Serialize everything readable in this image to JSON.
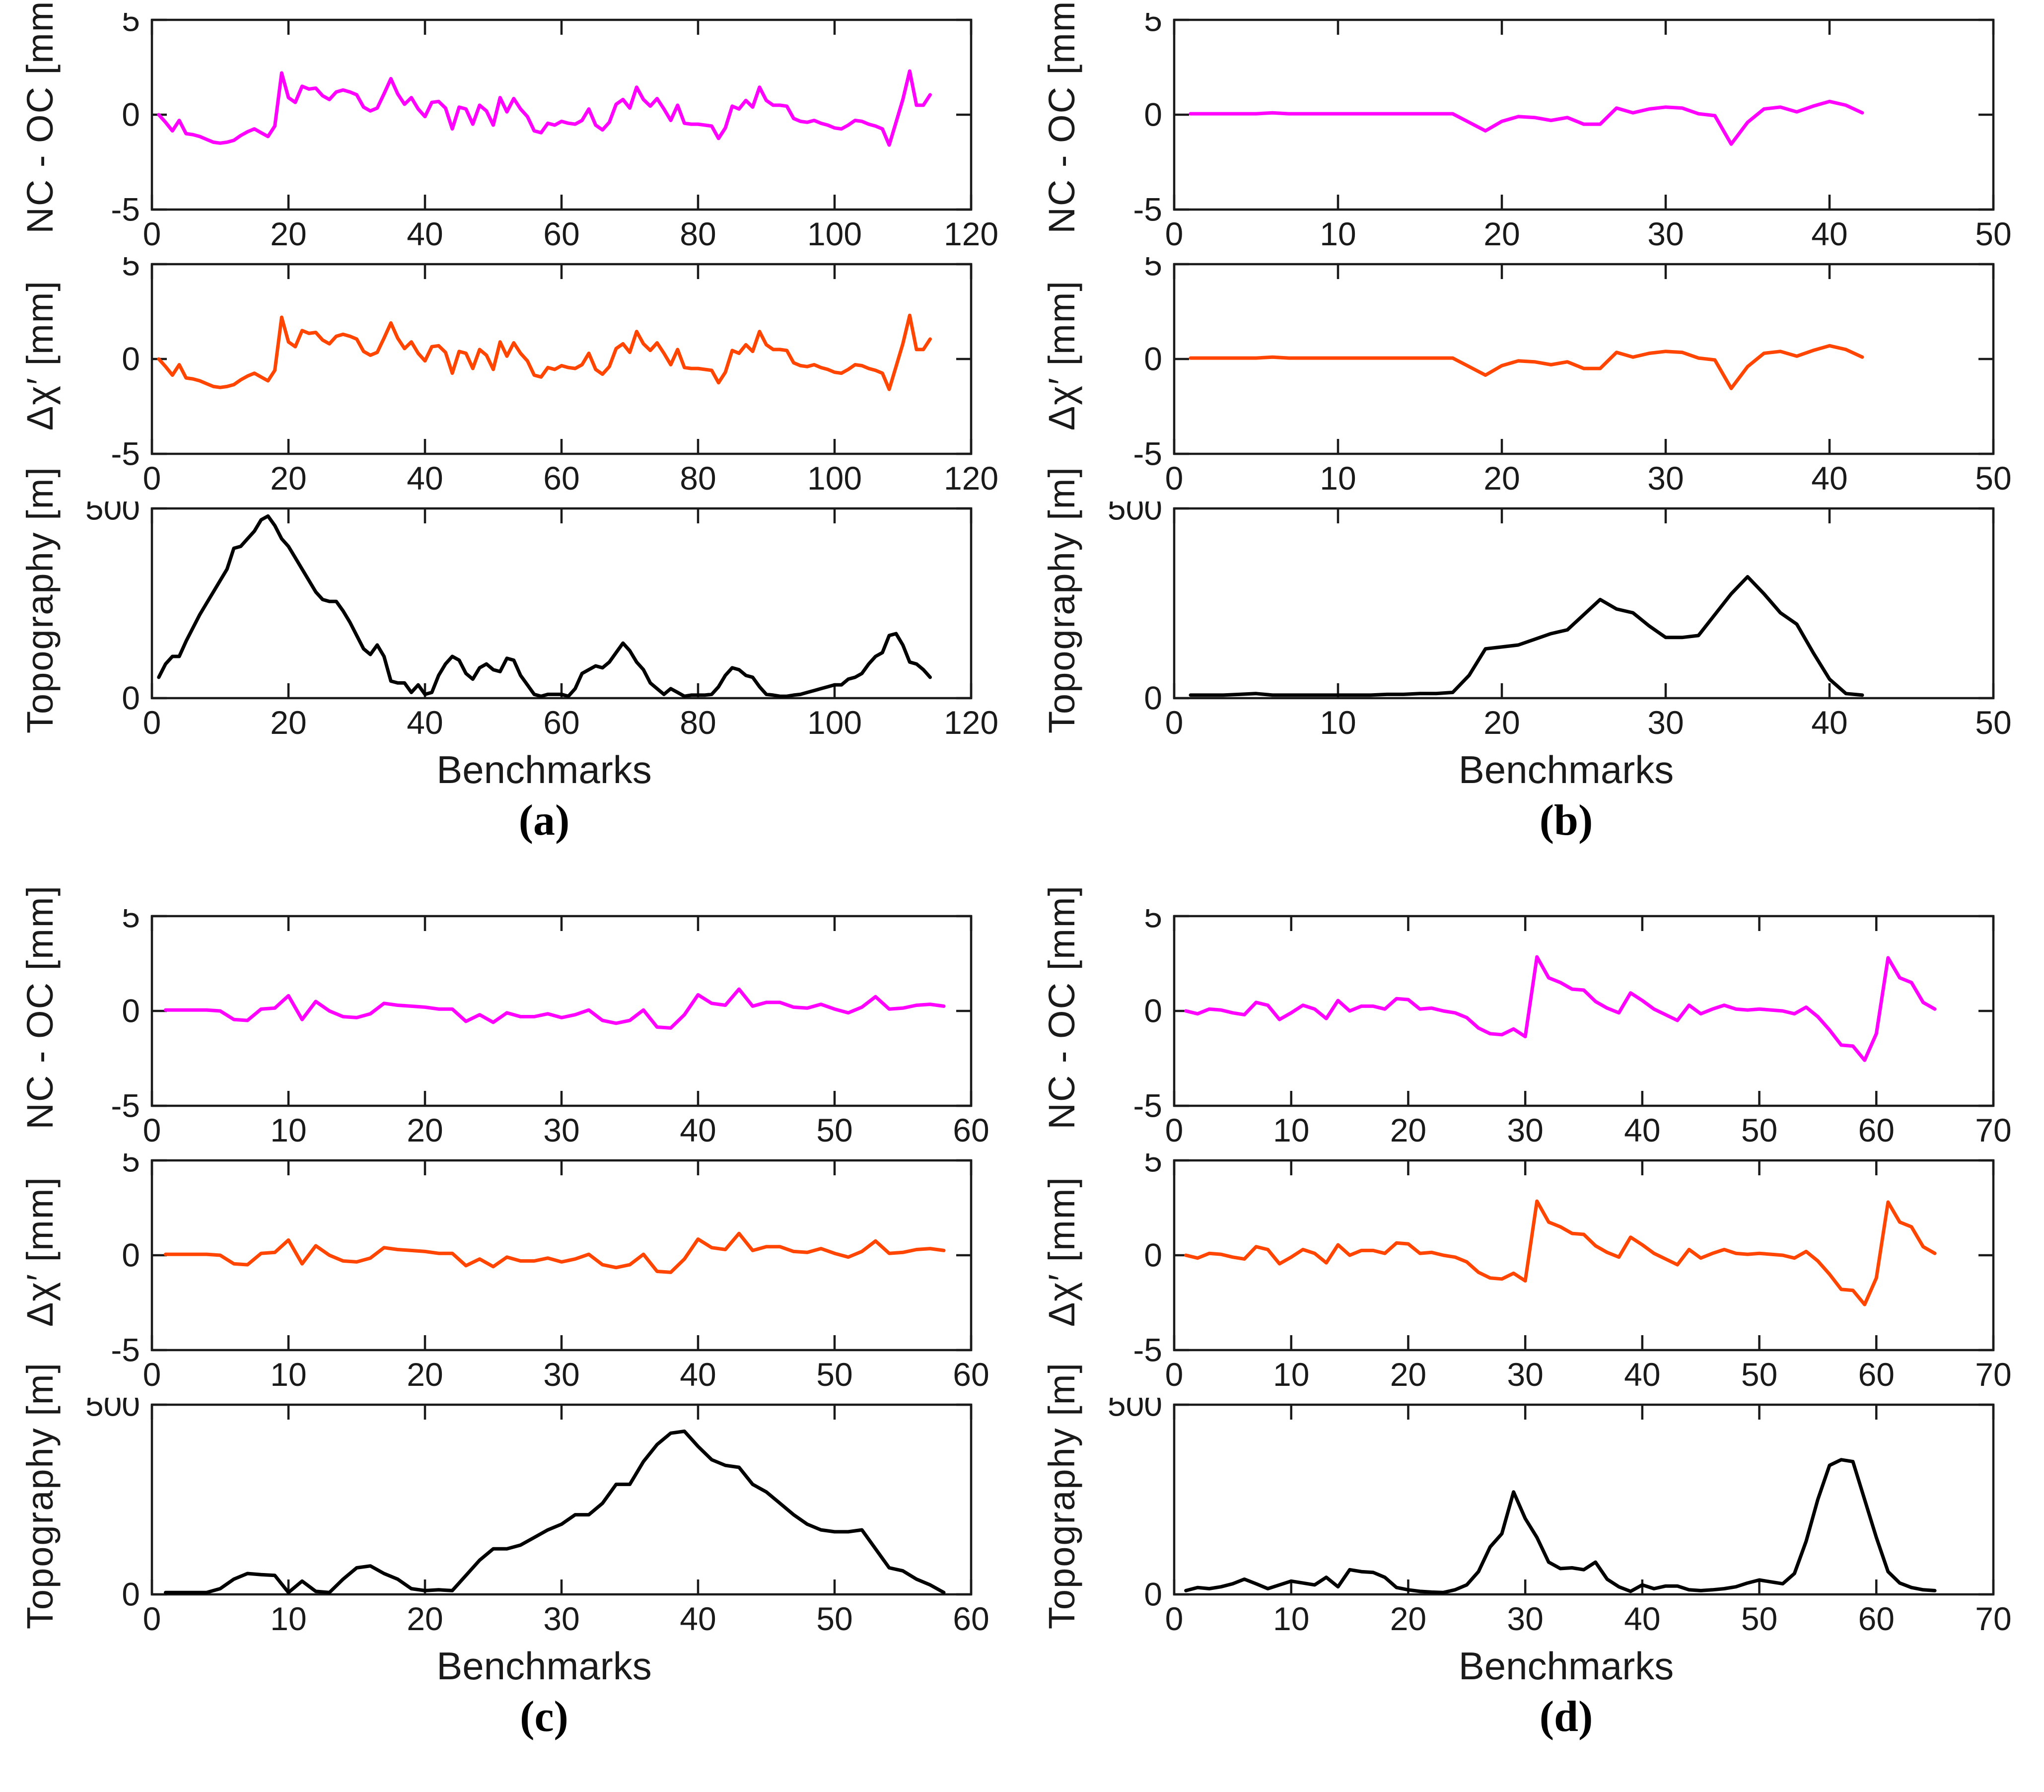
{
  "chart_data": [
    {
      "type": "line",
      "label": "(a)",
      "xlabel": "Benchmarks",
      "xlim": [
        0,
        120
      ],
      "xticks": [
        0,
        20,
        40,
        60,
        80,
        100,
        120
      ],
      "n_points": 114,
      "legend": "none",
      "grid": false,
      "series": {
        "residual": [
          0,
          -0.4,
          -0.85,
          -0.3,
          -1,
          -1.05,
          -1.15,
          -1.3,
          -1.45,
          -1.5,
          -1.45,
          -1.35,
          -1.1,
          -0.9,
          -0.75,
          -0.95,
          -1.15,
          -0.6,
          2.2,
          0.9,
          0.65,
          1.5,
          1.35,
          1.4,
          1,
          0.8,
          1.2,
          1.3,
          1.2,
          1.05,
          0.4,
          0.2,
          0.35,
          1.1,
          1.9,
          1.1,
          0.55,
          0.9,
          0.3,
          -0.1,
          0.65,
          0.7,
          0.35,
          -0.75,
          0.4,
          0.3,
          -0.5,
          0.5,
          0.2,
          -0.55,
          0.9,
          0.15,
          0.85,
          0.3,
          -0.1,
          -0.85,
          -0.95,
          -0.45,
          -0.55,
          -0.35,
          -0.45,
          -0.5,
          -0.3,
          0.3,
          -0.55,
          -0.8,
          -0.4,
          0.55,
          0.8,
          0.35,
          1.45,
          0.8,
          0.45,
          0.85,
          0.3,
          -0.3,
          0.5,
          -0.45,
          -0.5,
          -0.5,
          -0.55,
          -0.6,
          -1.25,
          -0.7,
          0.45,
          0.3,
          0.75,
          0.4,
          1.45,
          0.75,
          0.5,
          0.5,
          0.45,
          -0.2,
          -0.35,
          -0.4,
          -0.3,
          -0.45,
          -0.55,
          -0.7,
          -0.75,
          -0.55,
          -0.3,
          -0.35,
          -0.5,
          -0.6,
          -0.75,
          -1.6,
          -0.4,
          0.8,
          2.3,
          0.5,
          0.5,
          1.05
        ],
        "topography": [
          55,
          90,
          110,
          110,
          150,
          185,
          220,
          250,
          280,
          310,
          340,
          395,
          400,
          420,
          440,
          470,
          480,
          455,
          420,
          400,
          370,
          340,
          310,
          280,
          260,
          255,
          255,
          230,
          200,
          165,
          130,
          115,
          140,
          110,
          45,
          40,
          40,
          15,
          35,
          10,
          15,
          60,
          90,
          110,
          100,
          65,
          50,
          80,
          90,
          75,
          70,
          105,
          100,
          60,
          35,
          10,
          5,
          10,
          10,
          10,
          5,
          25,
          65,
          75,
          85,
          80,
          95,
          120,
          145,
          125,
          95,
          75,
          40,
          25,
          10,
          25,
          15,
          5,
          8,
          8,
          8,
          10,
          30,
          60,
          80,
          75,
          60,
          55,
          30,
          10,
          8,
          5,
          5,
          8,
          10,
          15,
          20,
          25,
          30,
          35,
          35,
          50,
          55,
          65,
          90,
          110,
          120,
          165,
          170,
          140,
          95,
          90,
          75,
          55
        ]
      },
      "charts": [
        {
          "name": "nc-oc",
          "ylabel": "NC - OC [mm]",
          "series": "residual",
          "color": "#ff00ff",
          "ylim": [
            -5,
            5
          ],
          "yticks": [
            5,
            0,
            -5
          ]
        },
        {
          "name": "delta-chi",
          "ylabel": "Δχ′ [mm]",
          "series": "residual",
          "color": "#ff4500",
          "ylim": [
            -5,
            5
          ],
          "yticks": [
            5,
            0,
            -5
          ]
        },
        {
          "name": "topography",
          "ylabel": "Topography [m]",
          "series": "topography",
          "color": "#000000",
          "ylim": [
            0,
            500
          ],
          "yticks": [
            500,
            0
          ]
        }
      ]
    },
    {
      "type": "line",
      "label": "(b)",
      "xlabel": "Benchmarks",
      "xlim": [
        0,
        50
      ],
      "xticks": [
        0,
        10,
        20,
        30,
        40,
        50
      ],
      "n_points": 42,
      "legend": "none",
      "grid": false,
      "series": {
        "residual": [
          0.05,
          0.05,
          0.05,
          0.05,
          0.05,
          0.1,
          0.05,
          0.05,
          0.05,
          0.05,
          0.05,
          0.05,
          0.05,
          0.05,
          0.05,
          0.05,
          0.05,
          -0.4,
          -0.85,
          -0.35,
          -0.1,
          -0.15,
          -0.3,
          -0.15,
          -0.5,
          -0.5,
          0.35,
          0.1,
          0.3,
          0.4,
          0.35,
          0.05,
          -0.05,
          -1.55,
          -0.4,
          0.3,
          0.4,
          0.15,
          0.45,
          0.7,
          0.5,
          0.1
        ],
        "topography": [
          8,
          8,
          8,
          10,
          12,
          8,
          8,
          8,
          8,
          8,
          8,
          8,
          10,
          10,
          12,
          12,
          15,
          60,
          130,
          135,
          140,
          155,
          170,
          180,
          220,
          260,
          235,
          225,
          190,
          160,
          160,
          165,
          220,
          275,
          320,
          275,
          225,
          195,
          120,
          50,
          12,
          8
        ]
      },
      "charts": [
        {
          "name": "nc-oc",
          "ylabel": "NC - OC [mm]",
          "series": "residual",
          "color": "#ff00ff",
          "ylim": [
            -5,
            5
          ],
          "yticks": [
            5,
            0,
            -5
          ]
        },
        {
          "name": "delta-chi",
          "ylabel": "Δχ′ [mm]",
          "series": "residual",
          "color": "#ff4500",
          "ylim": [
            -5,
            5
          ],
          "yticks": [
            5,
            0,
            -5
          ]
        },
        {
          "name": "topography",
          "ylabel": "Topography [m]",
          "series": "topography",
          "color": "#000000",
          "ylim": [
            0,
            500
          ],
          "yticks": [
            500,
            0
          ]
        }
      ]
    },
    {
      "type": "line",
      "label": "(c)",
      "xlabel": "Benchmarks",
      "xlim": [
        0,
        60
      ],
      "xticks": [
        0,
        10,
        20,
        30,
        40,
        50,
        60
      ],
      "n_points": 58,
      "legend": "none",
      "grid": false,
      "series": {
        "residual": [
          0.05,
          0.05,
          0.05,
          0.05,
          0,
          -0.45,
          -0.5,
          0.1,
          0.15,
          0.8,
          -0.45,
          0.5,
          0,
          -0.3,
          -0.35,
          -0.15,
          0.4,
          0.3,
          0.25,
          0.2,
          0.1,
          0.1,
          -0.55,
          -0.2,
          -0.6,
          -0.1,
          -0.3,
          -0.3,
          -0.15,
          -0.35,
          -0.2,
          0.05,
          -0.5,
          -0.65,
          -0.5,
          0.05,
          -0.85,
          -0.9,
          -0.2,
          0.85,
          0.4,
          0.3,
          1.15,
          0.25,
          0.45,
          0.45,
          0.2,
          0.15,
          0.35,
          0.1,
          -0.1,
          0.2,
          0.75,
          0.1,
          0.15,
          0.3,
          0.35,
          0.25
        ],
        "topography": [
          5,
          5,
          5,
          5,
          15,
          40,
          55,
          52,
          50,
          5,
          35,
          8,
          5,
          40,
          70,
          75,
          55,
          40,
          15,
          10,
          12,
          10,
          50,
          90,
          120,
          120,
          130,
          150,
          170,
          185,
          210,
          210,
          240,
          290,
          290,
          350,
          395,
          425,
          430,
          390,
          355,
          340,
          335,
          290,
          270,
          240,
          210,
          185,
          170,
          165,
          165,
          170,
          120,
          70,
          62,
          40,
          25,
          5
        ]
      },
      "charts": [
        {
          "name": "nc-oc",
          "ylabel": "NC - OC [mm]",
          "series": "residual",
          "color": "#ff00ff",
          "ylim": [
            -5,
            5
          ],
          "yticks": [
            5,
            0,
            -5
          ]
        },
        {
          "name": "delta-chi",
          "ylabel": "Δχ′ [mm]",
          "series": "residual",
          "color": "#ff4500",
          "ylim": [
            -5,
            5
          ],
          "yticks": [
            5,
            0,
            -5
          ]
        },
        {
          "name": "topography",
          "ylabel": "Topography [m]",
          "series": "topography",
          "color": "#000000",
          "ylim": [
            0,
            500
          ],
          "yticks": [
            500,
            0
          ]
        }
      ]
    },
    {
      "type": "line",
      "label": "(d)",
      "xlabel": "Benchmarks",
      "xlim": [
        0,
        70
      ],
      "xticks": [
        0,
        10,
        20,
        30,
        40,
        50,
        60,
        70
      ],
      "n_points": 65,
      "legend": "none",
      "grid": false,
      "series": {
        "residual": [
          0,
          -0.15,
          0.1,
          0.05,
          -0.1,
          -0.2,
          0.45,
          0.3,
          -0.45,
          -0.1,
          0.3,
          0.1,
          -0.4,
          0.55,
          0,
          0.25,
          0.25,
          0.1,
          0.65,
          0.6,
          0.1,
          0.15,
          0,
          -0.1,
          -0.35,
          -0.9,
          -1.2,
          -1.25,
          -0.95,
          -1.35,
          2.85,
          1.75,
          1.5,
          1.15,
          1.1,
          0.5,
          0.15,
          -0.1,
          0.95,
          0.55,
          0.1,
          -0.2,
          -0.5,
          0.3,
          -0.15,
          0.1,
          0.3,
          0.1,
          0.05,
          0.1,
          0.05,
          0,
          -0.15,
          0.2,
          -0.3,
          -1,
          -1.8,
          -1.85,
          -2.6,
          -1.2,
          2.8,
          1.75,
          1.5,
          0.45,
          0.1
        ],
        "topography": [
          10,
          18,
          15,
          20,
          28,
          40,
          28,
          15,
          25,
          35,
          30,
          25,
          45,
          20,
          65,
          60,
          58,
          45,
          18,
          12,
          8,
          6,
          5,
          12,
          25,
          60,
          125,
          160,
          270,
          200,
          150,
          85,
          68,
          70,
          65,
          85,
          40,
          20,
          8,
          25,
          15,
          22,
          22,
          12,
          10,
          12,
          15,
          20,
          30,
          38,
          33,
          28,
          55,
          140,
          250,
          340,
          355,
          350,
          250,
          150,
          60,
          30,
          18,
          12,
          10
        ]
      },
      "charts": [
        {
          "name": "nc-oc",
          "ylabel": "NC - OC [mm]",
          "series": "residual",
          "color": "#ff00ff",
          "ylim": [
            -5,
            5
          ],
          "yticks": [
            5,
            0,
            -5
          ]
        },
        {
          "name": "delta-chi",
          "ylabel": "Δχ′ [mm]",
          "series": "residual",
          "color": "#ff4500",
          "ylim": [
            -5,
            5
          ],
          "yticks": [
            5,
            0,
            -5
          ]
        },
        {
          "name": "topography",
          "ylabel": "Topography [m]",
          "series": "topography",
          "color": "#000000",
          "ylim": [
            0,
            500
          ],
          "yticks": [
            500,
            0
          ]
        }
      ]
    }
  ]
}
